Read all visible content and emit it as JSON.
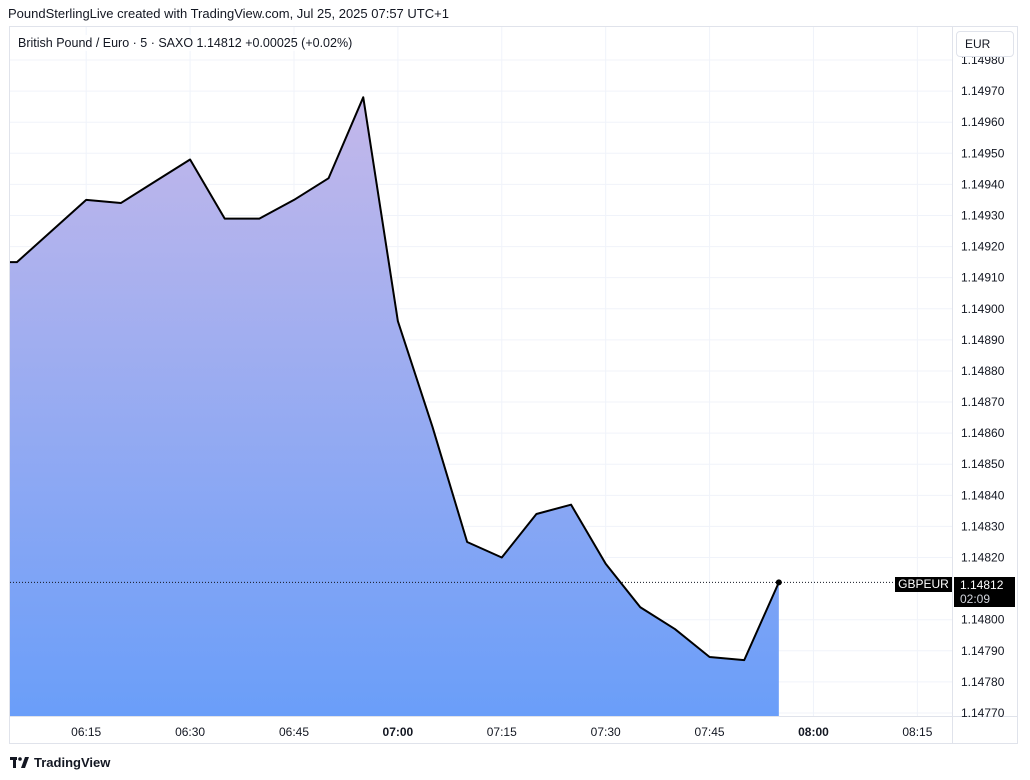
{
  "header": {
    "attribution": "PoundSterlingLive created with TradingView.com, Jul 25, 2025 07:57 UTC+1"
  },
  "legend": {
    "text": "British Pound / Euro · 5 · SAXO  1.14812  +0.00025 (+0.02%)"
  },
  "currency_button": {
    "label": "EUR"
  },
  "price_tag": {
    "symbol": "GBPEUR",
    "price": "1.14812",
    "countdown": "02:09"
  },
  "footer": {
    "brand": "TradingView"
  },
  "colors": {
    "line": "#000000",
    "fill_top": "#c4b8ea",
    "fill_bottom": "#6a9ef9",
    "grid": "#f0f3fa"
  },
  "chart_data": {
    "type": "area",
    "title": "British Pound / Euro · 5 · SAXO",
    "xlabel": "",
    "ylabel": "",
    "x": [
      "06:05",
      "06:10",
      "06:15",
      "06:20",
      "06:25",
      "06:30",
      "06:35",
      "06:40",
      "06:45",
      "06:50",
      "06:55",
      "07:00",
      "07:05",
      "07:10",
      "07:15",
      "07:20",
      "07:25",
      "07:30",
      "07:35",
      "07:40",
      "07:45",
      "07:50",
      "07:55"
    ],
    "series": [
      {
        "name": "GBPEUR",
        "values": [
          1.14915,
          1.14925,
          1.14935,
          1.14934,
          1.14941,
          1.14948,
          1.14929,
          1.14929,
          1.14935,
          1.14942,
          1.14968,
          1.14896,
          1.14862,
          1.14825,
          1.1482,
          1.14834,
          1.14837,
          1.14818,
          1.14804,
          1.14797,
          1.14788,
          1.14787,
          1.14812
        ]
      }
    ],
    "x_ticks": [
      "06:15",
      "06:30",
      "06:45",
      "07:00",
      "07:15",
      "07:30",
      "07:45",
      "08:00",
      "08:15"
    ],
    "x_ticks_bold": [
      "07:00",
      "08:00"
    ],
    "y_ticks": [
      "1.14770",
      "1.14780",
      "1.14790",
      "1.14800",
      "1.14820",
      "1.14830",
      "1.14840",
      "1.14850",
      "1.14860",
      "1.14870",
      "1.14880",
      "1.14890",
      "1.14900",
      "1.14910",
      "1.14920",
      "1.14930",
      "1.14940",
      "1.14950",
      "1.14960",
      "1.14970",
      "1.14980"
    ],
    "ylim": [
      1.1477,
      1.1498
    ],
    "xlim": [
      "06:04",
      "08:20"
    ],
    "last_price": 1.14812,
    "grid": true,
    "legend": "top-left"
  }
}
